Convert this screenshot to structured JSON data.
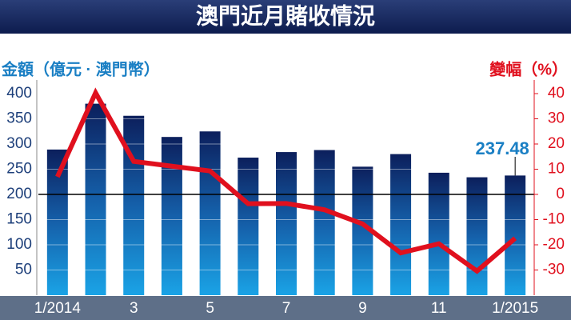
{
  "chart_data": {
    "type": "bar_line",
    "title": "澳門近月賭收情況",
    "y_label": "金額（億元 · 澳門幣）",
    "y2_label": "變幅（%）",
    "categories": [
      "1/2014",
      null,
      "3",
      null,
      "5",
      null,
      "7",
      null,
      "9",
      null,
      "11",
      null,
      "1/2015"
    ],
    "series": [
      {
        "name": "金額",
        "type": "bar",
        "color": "#1565b0",
        "values": [
          289,
          380,
          356,
          314,
          325,
          273,
          284,
          288,
          255,
          280,
          243,
          234,
          237.48
        ],
        "value_labels": [
          null,
          null,
          null,
          null,
          null,
          null,
          null,
          null,
          null,
          null,
          null,
          null,
          "237.48"
        ]
      },
      {
        "name": "變幅",
        "type": "line",
        "axis": "y2",
        "color": "#e0101e",
        "values": [
          7,
          40.3,
          13.1,
          11.2,
          9.3,
          -3.7,
          -3.6,
          -6.1,
          -11.7,
          -23.2,
          -19.6,
          -30.4,
          -17.4
        ]
      }
    ],
    "ylim": [
      0,
      427
    ],
    "yticks": [
      50,
      100,
      150,
      200,
      250,
      300,
      350,
      400
    ],
    "y2lim": [
      -40,
      45.4
    ],
    "y2ticks": [
      -30,
      -20,
      -10,
      0,
      10,
      20,
      30,
      40
    ],
    "grid": true
  }
}
